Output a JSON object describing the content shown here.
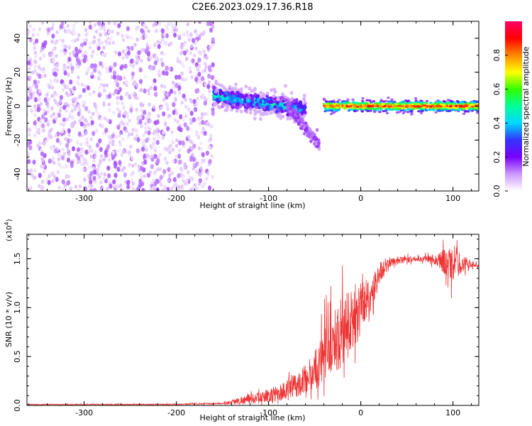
{
  "title": "C2E6.2023.029.17.36.R18",
  "chart_data": [
    {
      "type": "heatmap",
      "panel": "spectrogram",
      "xlabel": "Height of straight line (km)",
      "ylabel": "Frequency (Hz)",
      "xlim": [
        -362,
        128
      ],
      "ylim": [
        -50,
        50
      ],
      "xticks": [
        "-300",
        "-200",
        "-100",
        "0",
        "100"
      ],
      "yticks": [
        "-40",
        "-20",
        "0",
        "20",
        "40"
      ],
      "xtick_values": [
        -300,
        -200,
        -100,
        0,
        100
      ],
      "ytick_values": [
        -40,
        -20,
        0,
        20,
        40
      ],
      "colorbar": {
        "label": "Normalized spectral amplitude",
        "range": [
          0,
          1
        ],
        "ticks": [
          "0.0",
          "0.2",
          "0.4",
          "0.6",
          "0.8"
        ],
        "tick_values": [
          0.0,
          0.2,
          0.4,
          0.6,
          0.8
        ],
        "colormap": [
          "#ffffff",
          "#cc99ff",
          "#7a00ff",
          "#3333ff",
          "#00d8ff",
          "#00ff99",
          "#33ff00",
          "#ffff00",
          "#ff8800",
          "#ff0000",
          "#ff0066"
        ]
      },
      "regions": [
        {
          "name": "noise",
          "x": [
            -362,
            -160
          ],
          "freq": [
            -50,
            50
          ],
          "amplitude": 0.05
        },
        {
          "name": "signal-onset",
          "x": [
            -160,
            -60
          ],
          "freq": [
            -10,
            15
          ],
          "amplitude": 0.4
        },
        {
          "name": "signal-descending-branch",
          "x": [
            -80,
            -45
          ],
          "freq": [
            -28,
            0
          ],
          "amplitude": 0.15
        },
        {
          "name": "carrier",
          "x": [
            -40,
            128
          ],
          "freq": [
            -3,
            3
          ],
          "amplitude": 0.9
        }
      ]
    },
    {
      "type": "line",
      "panel": "snr",
      "xlabel": "Height of straight line (km)",
      "ylabel": "SNR (10 * v/v)",
      "multiplier_label": "(x10",
      "multiplier_exponent": "4",
      "multiplier_close": ")",
      "xlim": [
        -362,
        128
      ],
      "ylim": [
        0,
        1.75
      ],
      "xticks": [
        "-300",
        "-200",
        "-100",
        "0",
        "100"
      ],
      "yticks": [
        "0.0",
        "0.5",
        "1.0",
        "1.5"
      ],
      "xtick_values": [
        -300,
        -200,
        -100,
        0,
        100
      ],
      "ytick_values": [
        0.0,
        0.5,
        1.0,
        1.5
      ],
      "color": "#ee3333",
      "series": [
        {
          "envelope": {
            "x": [
              -362,
              -300,
              -200,
              -150,
              -130,
              -110,
              -90,
              -70,
              -50,
              -40,
              -30,
              -20,
              -10,
              0,
              10,
              20,
              30,
              40,
              60,
              80,
              95,
              110,
              128
            ],
            "y": [
              0.01,
              0.01,
              0.01,
              0.02,
              0.05,
              0.08,
              0.12,
              0.2,
              0.35,
              0.55,
              0.65,
              0.75,
              0.85,
              1.05,
              1.1,
              1.35,
              1.45,
              1.48,
              1.5,
              1.5,
              1.45,
              1.45,
              1.43
            ]
          },
          "noise_amplitude": {
            "x": [
              -362,
              -150,
              -130,
              -100,
              -60,
              -40,
              -20,
              -10,
              0,
              10,
              20,
              30,
              60,
              80,
              100,
              115,
              128
            ],
            "y": [
              0.005,
              0.01,
              0.05,
              0.08,
              0.18,
              0.35,
              0.45,
              0.5,
              0.3,
              0.25,
              0.15,
              0.06,
              0.03,
              0.06,
              0.25,
              0.05,
              0.02
            ]
          }
        }
      ]
    }
  ]
}
